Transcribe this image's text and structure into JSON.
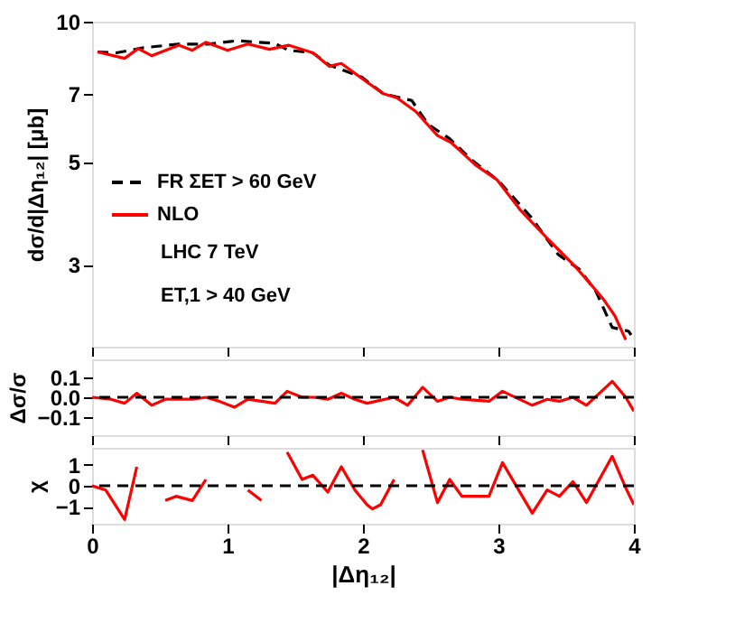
{
  "chart_data": [
    {
      "type": "line",
      "ylabel": "dσ/d|Δη₁₂| [μb]",
      "log": true,
      "xlim": [
        0,
        4
      ],
      "xticks": [
        0,
        1,
        2,
        3,
        4
      ],
      "ylim": [
        2,
        10
      ],
      "yticks": [
        3,
        5,
        7,
        10
      ],
      "tick_labels": "y",
      "grid": false,
      "legend": "left",
      "series": [
        {
          "name": "FR ΣET > 60 GeV",
          "color": "#000000",
          "line_style": "dashed",
          "x": [
            0.04,
            0.18,
            0.38,
            0.64,
            0.86,
            1.07,
            1.35,
            1.45,
            1.63,
            1.75,
            1.99,
            2.15,
            2.36,
            2.48,
            2.64,
            2.8,
            3.0,
            3.24,
            3.44,
            3.6,
            3.72,
            3.84,
            3.96,
            3.98
          ],
          "values": [
            8.61,
            8.57,
            8.79,
            8.95,
            8.95,
            9.1,
            8.98,
            8.68,
            8.57,
            8.07,
            7.6,
            7.0,
            6.77,
            6.02,
            5.6,
            5.05,
            4.55,
            3.8,
            3.16,
            2.93,
            2.63,
            2.2,
            2.16,
            2.12
          ]
        },
        {
          "name": "NLO",
          "color": "#ff0000",
          "line_style": "solid",
          "x": [
            0.04,
            0.24,
            0.34,
            0.44,
            0.64,
            0.74,
            0.84,
            1.0,
            1.15,
            1.31,
            1.45,
            1.63,
            1.75,
            1.84,
            2.03,
            2.15,
            2.25,
            2.39,
            2.55,
            2.65,
            2.83,
            2.99,
            3.16,
            3.36,
            3.56,
            3.66,
            3.78,
            3.86,
            3.94
          ],
          "values": [
            8.61,
            8.34,
            8.75,
            8.45,
            8.9,
            8.68,
            9.03,
            8.68,
            8.95,
            8.72,
            8.9,
            8.57,
            8.02,
            8.13,
            7.41,
            7.0,
            6.86,
            6.41,
            5.69,
            5.5,
            4.92,
            4.57,
            3.94,
            3.42,
            2.99,
            2.77,
            2.52,
            2.33,
            2.07
          ]
        }
      ],
      "annotations": [
        "LHC  7 TeV",
        "ET,1 > 40 GeV"
      ]
    },
    {
      "type": "line",
      "ylabel": "Δσ/σ",
      "xlim": [
        0,
        4
      ],
      "xticks": [
        0,
        1,
        2,
        3,
        4
      ],
      "ylim": [
        -0.19,
        0.19
      ],
      "yticks": [
        {
          "value": -0.1,
          "label": "−0.1"
        },
        {
          "value": 0,
          "label": "0.0"
        },
        0.1
      ],
      "tick_labels": "y",
      "grid": false,
      "ref_lines": [
        {
          "axis": "y",
          "value": 0,
          "color": "#000000",
          "line_style": "dashed"
        }
      ],
      "series": [
        {
          "color": "#ff0000",
          "line_style": "solid",
          "x": [
            0,
            0.14,
            0.24,
            0.33,
            0.44,
            0.54,
            0.74,
            0.84,
            0.94,
            1.05,
            1.15,
            1.25,
            1.35,
            1.44,
            1.55,
            1.64,
            1.74,
            1.84,
            1.94,
            2.03,
            2.23,
            2.33,
            2.44,
            2.55,
            2.64,
            2.73,
            2.93,
            3.03,
            3.25,
            3.36,
            3.45,
            3.55,
            3.65,
            3.84,
            3.94,
            4.0
          ],
          "values": [
            0,
            -0.01,
            -0.03,
            0.02,
            -0.04,
            -0.01,
            -0.01,
            0.0,
            -0.02,
            -0.05,
            -0.01,
            -0.02,
            -0.03,
            0.03,
            0.0,
            0.0,
            -0.01,
            0.02,
            -0.01,
            -0.03,
            0,
            -0.04,
            0.05,
            -0.02,
            0.0,
            -0.01,
            -0.02,
            0.03,
            -0.04,
            -0.01,
            -0.02,
            0.0,
            -0.04,
            0.08,
            0.0,
            -0.07
          ]
        }
      ]
    },
    {
      "type": "line",
      "ylabel": "χ",
      "xlabel": "|Δη₁₂|",
      "xlim": [
        0,
        4
      ],
      "xticks": [
        0,
        1,
        2,
        3,
        4
      ],
      "ylim": [
        -1.8,
        1.8
      ],
      "yticks": [
        {
          "value": -1,
          "label": "−1"
        },
        0,
        1
      ],
      "grid": false,
      "ref_lines": [
        {
          "axis": "y",
          "value": 0,
          "color": "#000000",
          "line_style": "dashed"
        }
      ],
      "series": [
        {
          "color": "#ff0000",
          "line_style": "solid",
          "x": [
            0,
            0.1,
            0.24,
            0.33,
            0.44,
            0.54,
            0.62,
            0.74,
            0.84,
            0.94,
            1.06,
            1.15,
            1.25,
            1.35,
            1.44,
            1.55,
            1.63,
            1.74,
            1.84,
            1.94,
            2.03,
            2.07,
            2.13,
            2.23,
            2.33,
            2.44,
            2.55,
            2.64,
            2.73,
            2.93,
            3.03,
            3.25,
            3.36,
            3.45,
            3.55,
            3.65,
            3.84,
            3.94,
            4.0
          ],
          "values": [
            0,
            -0.2,
            -1.6,
            0.9,
            null,
            -0.7,
            -0.5,
            -0.7,
            0.3,
            null,
            null,
            -0.2,
            -0.7,
            null,
            1.6,
            0.3,
            0.5,
            -0.3,
            0.9,
            -0.2,
            -0.9,
            -1.1,
            -0.9,
            0.3,
            null,
            1.7,
            -0.8,
            0.3,
            -0.5,
            -0.5,
            1.1,
            -1.3,
            -0.2,
            -0.5,
            0.2,
            -0.8,
            1.4,
            -0.1,
            -0.9
          ]
        }
      ]
    }
  ]
}
